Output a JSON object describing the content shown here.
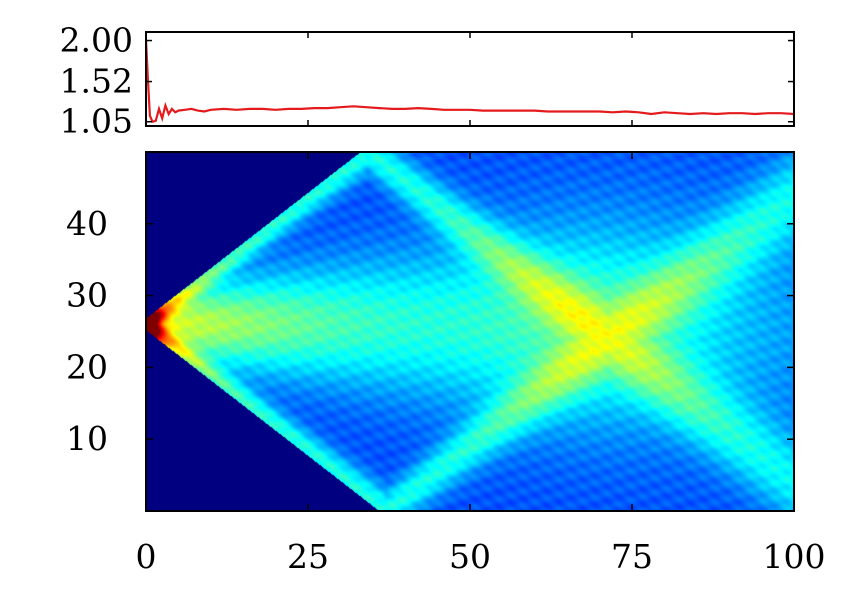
{
  "chart_data": [
    {
      "type": "line",
      "title": "",
      "xlabel": "",
      "ylabel": "",
      "xlim": [
        0,
        100
      ],
      "ylim": [
        1.0,
        2.1
      ],
      "y_ticks": [
        "2.00",
        "1.52",
        "1.05"
      ],
      "y_tick_values": [
        2.0,
        1.52,
        1.05
      ],
      "grid": false,
      "series": [
        {
          "color": "#e41a1c",
          "x": [
            0,
            0.3,
            0.6,
            1.0,
            1.5,
            2.0,
            2.5,
            3.0,
            3.5,
            4.0,
            4.5,
            5,
            6,
            7,
            8,
            9,
            10,
            12,
            14,
            16,
            18,
            20,
            22,
            24,
            26,
            28,
            30,
            32,
            34,
            36,
            38,
            40,
            42,
            44,
            46,
            48,
            50,
            52,
            54,
            56,
            58,
            60,
            62,
            64,
            66,
            68,
            70,
            72,
            74,
            76,
            78,
            80,
            82,
            84,
            86,
            88,
            90,
            92,
            94,
            96,
            98,
            100
          ],
          "y": [
            2.0,
            1.55,
            1.12,
            1.05,
            1.06,
            1.2,
            1.09,
            1.24,
            1.14,
            1.2,
            1.16,
            1.18,
            1.19,
            1.2,
            1.18,
            1.17,
            1.19,
            1.2,
            1.19,
            1.2,
            1.2,
            1.19,
            1.2,
            1.2,
            1.21,
            1.21,
            1.22,
            1.23,
            1.22,
            1.21,
            1.2,
            1.2,
            1.21,
            1.2,
            1.19,
            1.19,
            1.19,
            1.18,
            1.18,
            1.18,
            1.18,
            1.18,
            1.17,
            1.17,
            1.17,
            1.17,
            1.17,
            1.16,
            1.17,
            1.16,
            1.14,
            1.16,
            1.15,
            1.14,
            1.15,
            1.14,
            1.15,
            1.15,
            1.14,
            1.15,
            1.15,
            1.14
          ]
        }
      ]
    },
    {
      "type": "heatmap",
      "title": "",
      "xlabel": "",
      "ylabel": "",
      "xlim": [
        0,
        100
      ],
      "ylim": [
        0,
        50
      ],
      "x_ticks": [
        "0",
        "25",
        "50",
        "75",
        "100"
      ],
      "x_tick_values": [
        0,
        25,
        50,
        75,
        100
      ],
      "y_ticks": [
        "10",
        "20",
        "30",
        "40"
      ],
      "y_tick_values": [
        10,
        20,
        30,
        40
      ],
      "colormap": "jet",
      "grid": false,
      "features": {
        "source_x": 0,
        "source_y": 26,
        "light_cone_slope": 0.7,
        "reflection_x": [
          35,
          70
        ],
        "central_beam_y": 26
      }
    }
  ]
}
